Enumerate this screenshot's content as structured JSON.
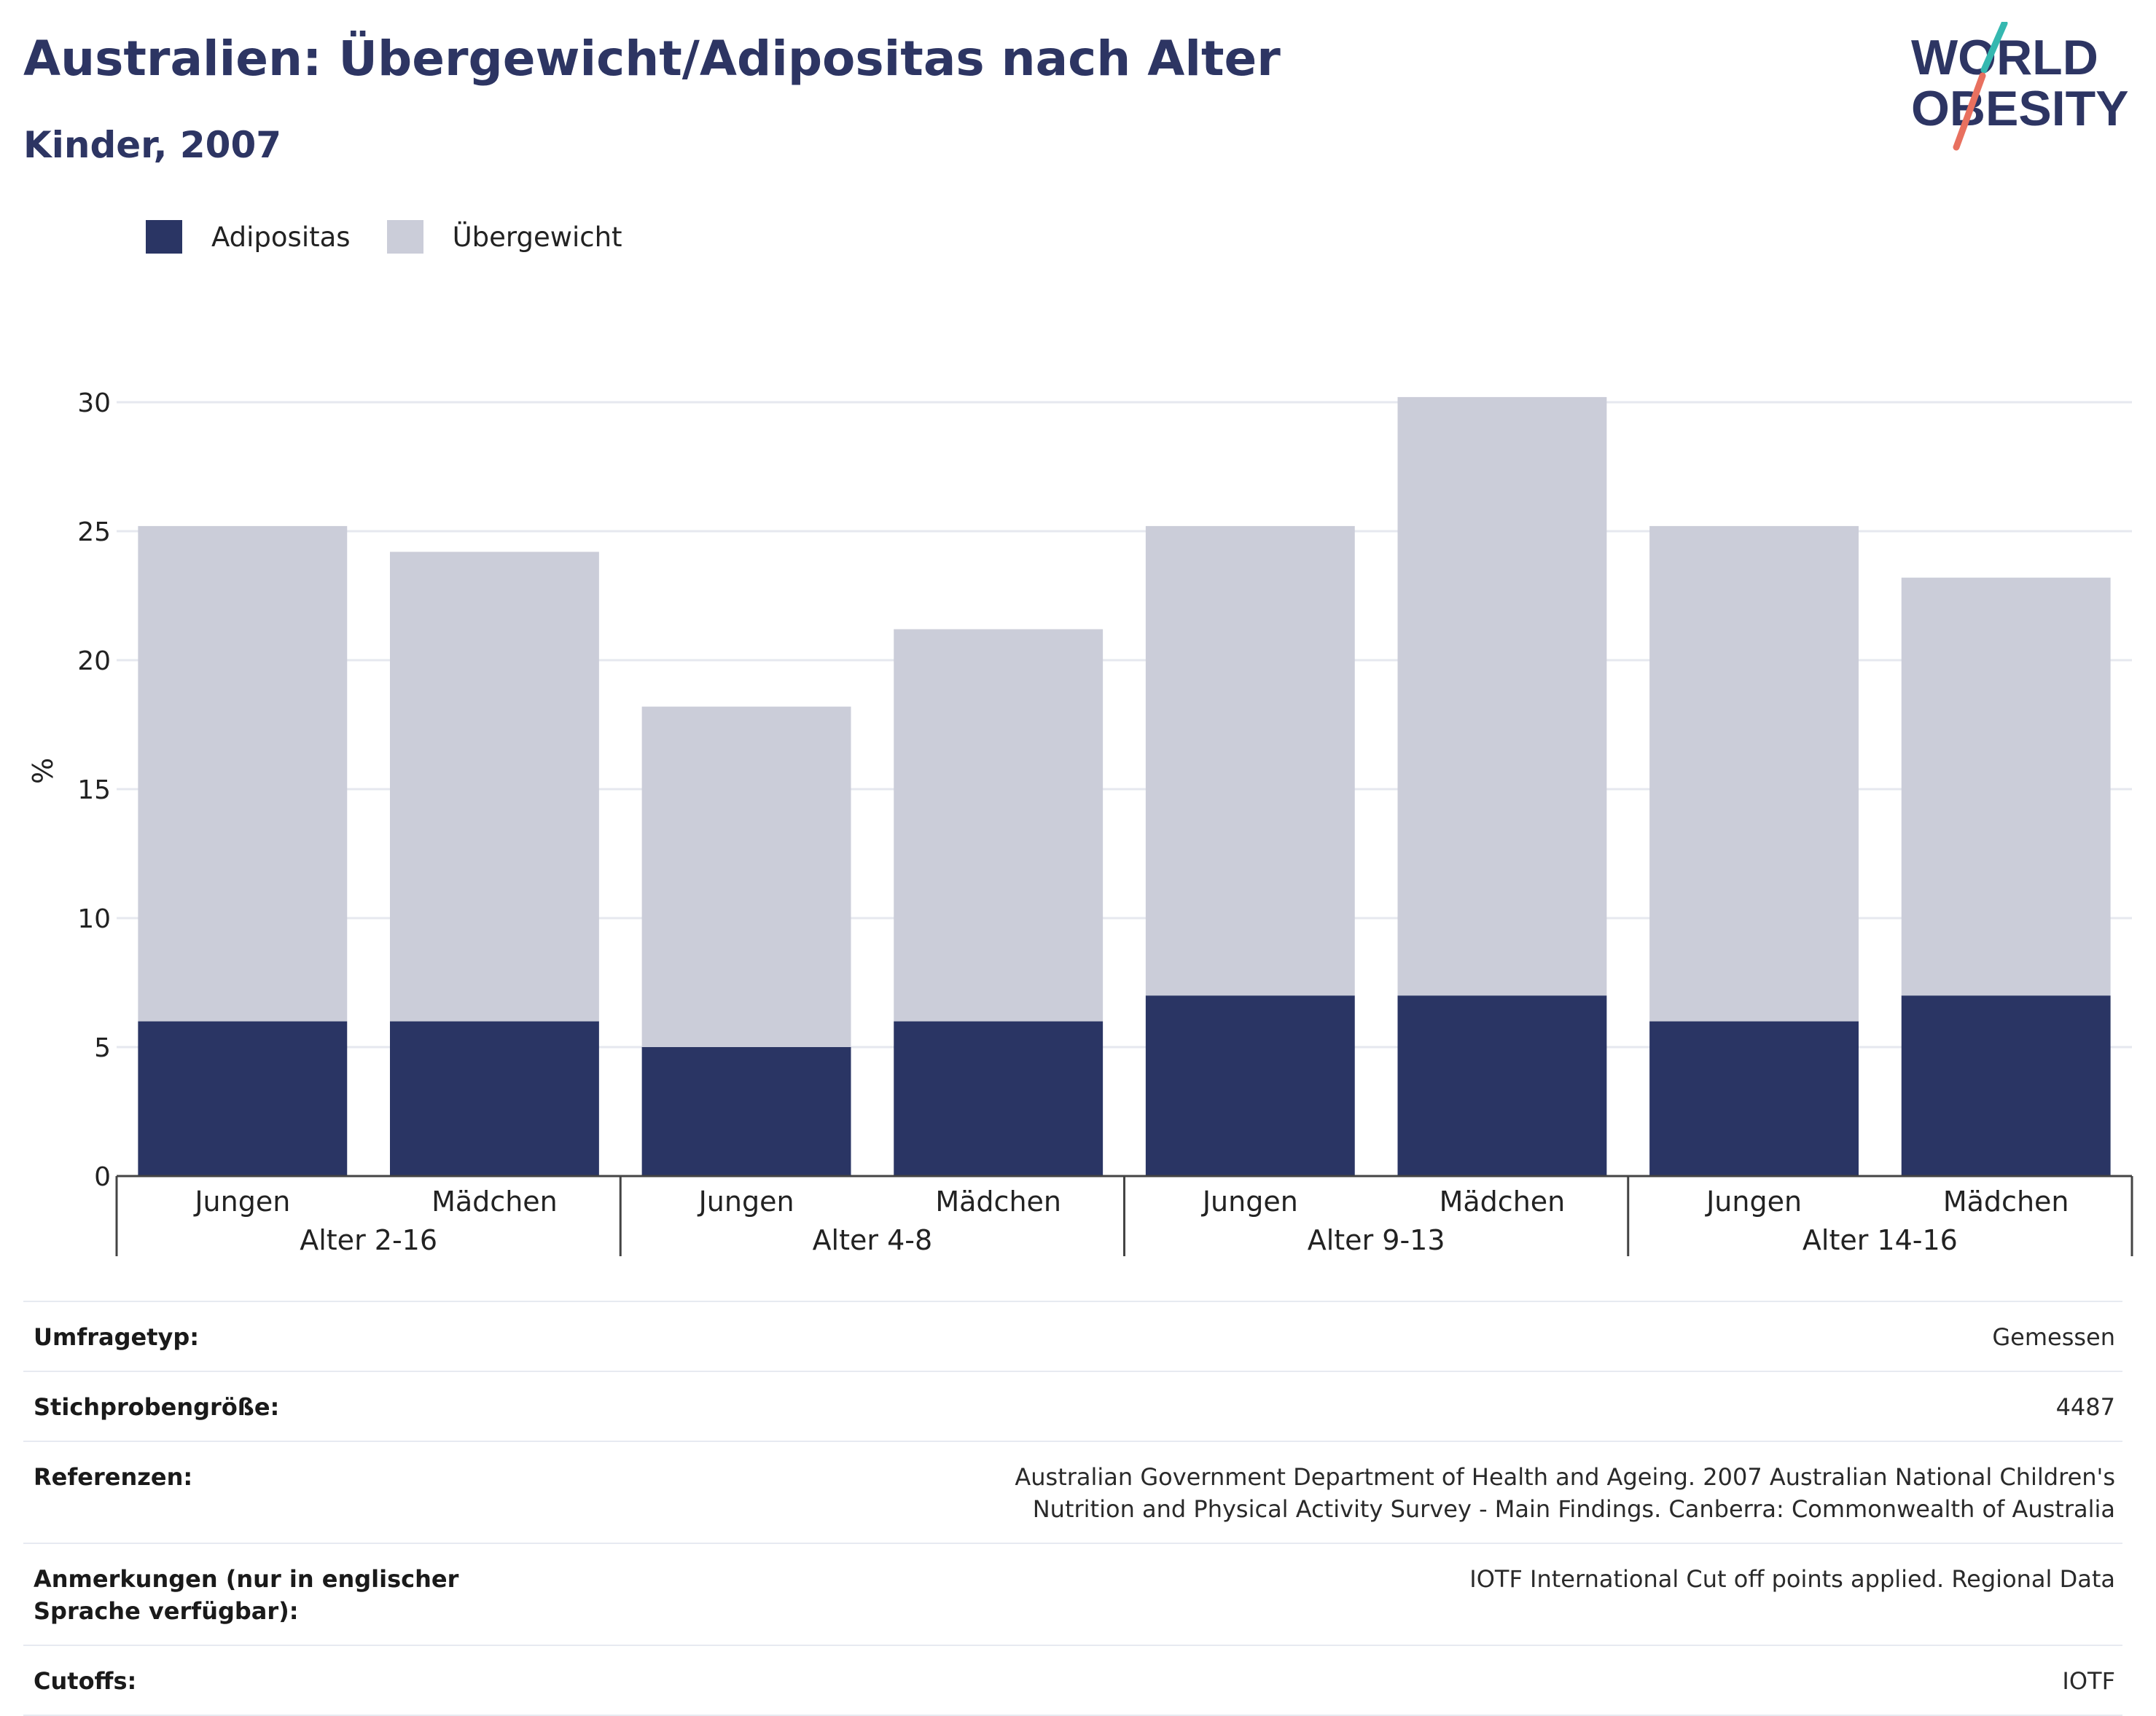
{
  "header": {
    "title": "Australien: Übergewicht/Adipositas nach Alter",
    "subtitle": "Kinder, 2007",
    "logo_text_line1": "WORLD",
    "logo_text_line2": "OBESITY"
  },
  "colors": {
    "title": "#2d3563",
    "adipositas": "#2a3564",
    "uebergewicht": "#cbcdd9",
    "grid": "#e6e8ef",
    "axis": "#444444",
    "logo_teal": "#35b8b0",
    "logo_coral": "#e8705f"
  },
  "legend": [
    {
      "label": "Adipositas",
      "color": "#2a3564"
    },
    {
      "label": "Übergewicht",
      "color": "#cbcdd9"
    }
  ],
  "chart_data": {
    "type": "bar",
    "stacked": true,
    "ylabel": "%",
    "ylim": [
      0,
      30
    ],
    "yticks": [
      0,
      5,
      10,
      15,
      20,
      25,
      30
    ],
    "grid": true,
    "legend_position": "top-left",
    "groups": [
      {
        "label": "Alter 2-16",
        "categories": [
          "Jungen",
          "Mädchen"
        ]
      },
      {
        "label": "Alter 4-8",
        "categories": [
          "Jungen",
          "Mädchen"
        ]
      },
      {
        "label": "Alter 9-13",
        "categories": [
          "Jungen",
          "Mädchen"
        ]
      },
      {
        "label": "Alter 14-16",
        "categories": [
          "Jungen",
          "Mädchen"
        ]
      }
    ],
    "series": [
      {
        "name": "Adipositas",
        "values": [
          6,
          6,
          5,
          6,
          7,
          7,
          6,
          7
        ]
      },
      {
        "name": "Übergewicht",
        "values": [
          19.2,
          18.2,
          13.2,
          15.2,
          18.2,
          23.2,
          19.2,
          16.2
        ]
      }
    ]
  },
  "meta": [
    {
      "key": "Umfragetyp:",
      "value": "Gemessen"
    },
    {
      "key": "Stichprobengröße:",
      "value": "4487"
    },
    {
      "key": "Referenzen:",
      "value": "Australian Government Department of Health and Ageing. 2007 Australian National Children's Nutrition and Physical Activity Survey - Main Findings. Canberra: Commonwealth of Australia"
    },
    {
      "key": "Anmerkungen (nur in englischer Sprache verfügbar):",
      "value": "IOTF International Cut off points applied. Regional Data"
    },
    {
      "key": "Cutoffs:",
      "value": "IOTF"
    }
  ]
}
